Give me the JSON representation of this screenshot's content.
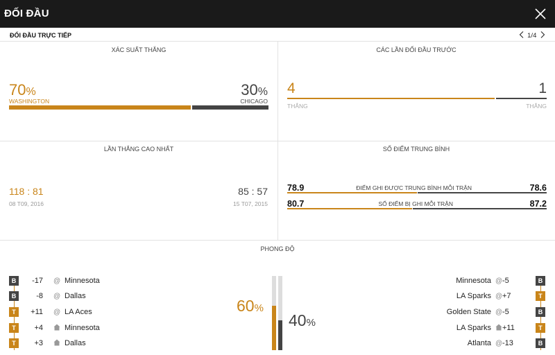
{
  "header": {
    "title": "ĐỐI ĐẦU"
  },
  "subheader": {
    "label": "ĐỐI ĐẦU TRỰC TIẾP",
    "page": "1/4"
  },
  "win_probability": {
    "caption": "XÁC SUẤT THẮNG",
    "home": {
      "value": "70",
      "unit": "%",
      "team": "WASHINGTON",
      "share": 0.7
    },
    "away": {
      "value": "30",
      "unit": "%",
      "team": "CHICAGO",
      "share": 0.3
    }
  },
  "previous_meetings": {
    "caption": "CÁC LẦN ĐỐI ĐẦU TRƯỚC",
    "home": {
      "value": "4",
      "label": "THẮNG",
      "share": 0.8
    },
    "away": {
      "value": "1",
      "label": "THẮNG",
      "share": 0.2
    }
  },
  "biggest_win": {
    "caption": "LẦN THẮNG CAO NHẤT",
    "home": {
      "score_a": "118",
      "sep": ":",
      "score_b": "81",
      "date": "08 T09, 2016"
    },
    "away": {
      "score_a": "85",
      "sep": ":",
      "score_b": "57",
      "date": "15 T07, 2015"
    }
  },
  "average_points": {
    "caption": "SỐ ĐIỂM TRUNG BÌNH",
    "rows": [
      {
        "home": "78.9",
        "label": "ĐIỂM GHI ĐƯỢC TRUNG BÌNH MỖI TRẬN",
        "away": "78.6",
        "home_share": 0.5
      },
      {
        "home": "80.7",
        "label": "SỐ ĐIỂM BỊ GHI MỖI TRẬN",
        "away": "87.2",
        "home_share": 0.48
      }
    ]
  },
  "form": {
    "caption": "PHONG ĐỘ",
    "home_pct": {
      "value": "60",
      "unit": "%",
      "share": 0.6
    },
    "away_pct": {
      "value": "40",
      "unit": "%",
      "share": 0.4
    },
    "home_games": [
      {
        "result": "B",
        "diff": "-17",
        "venue": "@",
        "opponent": "Minnesota"
      },
      {
        "result": "B",
        "diff": "-8",
        "venue": "@",
        "opponent": "Dallas"
      },
      {
        "result": "T",
        "diff": "+11",
        "venue": "@",
        "opponent": "LA Aces"
      },
      {
        "result": "T",
        "diff": "+4",
        "venue": "home",
        "opponent": "Minnesota"
      },
      {
        "result": "T",
        "diff": "+3",
        "venue": "home",
        "opponent": "Dallas"
      }
    ],
    "away_games": [
      {
        "result": "B",
        "diff": "-5",
        "venue": "@",
        "opponent": "Minnesota"
      },
      {
        "result": "T",
        "diff": "+7",
        "venue": "@",
        "opponent": "LA Sparks"
      },
      {
        "result": "B",
        "diff": "-5",
        "venue": "@",
        "opponent": "Golden State"
      },
      {
        "result": "T",
        "diff": "+11",
        "venue": "home",
        "opponent": "LA Sparks"
      },
      {
        "result": "B",
        "diff": "-13",
        "venue": "@",
        "opponent": "Atlanta"
      }
    ]
  },
  "colors": {
    "home": "#c9851a",
    "away": "#444444",
    "topbar": "#1a1a1a"
  },
  "icons": {
    "close": "close-icon",
    "prev": "chevron-left-icon",
    "next": "chevron-right-icon",
    "home_venue": "home-icon"
  }
}
